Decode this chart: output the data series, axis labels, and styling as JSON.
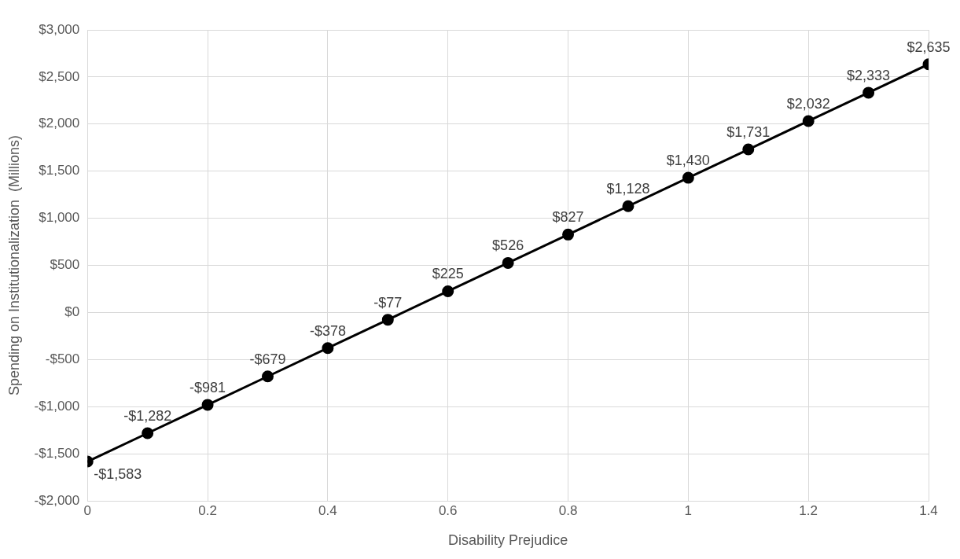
{
  "chart_data": {
    "type": "line",
    "xlabel": "Disability Prejudice",
    "ylabel": "Spending on Institutionalization  (Millions)",
    "x": [
      0,
      0.1,
      0.2,
      0.3,
      0.4,
      0.5,
      0.6,
      0.7,
      0.8,
      0.9,
      1,
      1.1,
      1.2,
      1.3,
      1.4
    ],
    "series": [
      {
        "color": "#000000",
        "values": [
          -1583,
          -1282,
          -981,
          -679,
          -378,
          -77,
          225,
          526,
          827,
          1128,
          1430,
          1731,
          2032,
          2333,
          2635
        ],
        "value_labels": [
          "-$1,583",
          "-$1,282",
          "-$981",
          "-$679",
          "-$378",
          "-$77",
          "$225",
          "$526",
          "$827",
          "$1,128",
          "$1,430",
          "$1,731",
          "$2,032",
          "$2,333",
          "$2,635"
        ]
      }
    ],
    "xlim": [
      0,
      1.4
    ],
    "xticks": [
      0,
      0.2,
      0.4,
      0.6,
      0.8,
      1,
      1.2,
      1.4
    ],
    "ylim": [
      -2000,
      3000
    ],
    "yticks": [
      {
        "value": -2000,
        "label": "-$2,000"
      },
      {
        "value": -1500,
        "label": "-$1,500"
      },
      {
        "value": -1000,
        "label": "-$1,000"
      },
      {
        "value": -500,
        "label": "-$500"
      },
      {
        "value": 0,
        "label": "$0"
      },
      {
        "value": 500,
        "label": "$500"
      },
      {
        "value": 1000,
        "label": "$1,000"
      },
      {
        "value": 1500,
        "label": "$1,500"
      },
      {
        "value": 2000,
        "label": "$2,000"
      },
      {
        "value": 2500,
        "label": "$2,500"
      },
      {
        "value": 3000,
        "label": "$3,000"
      }
    ],
    "grid": true,
    "legend": false,
    "marker": "circle",
    "line_style": "solid"
  }
}
